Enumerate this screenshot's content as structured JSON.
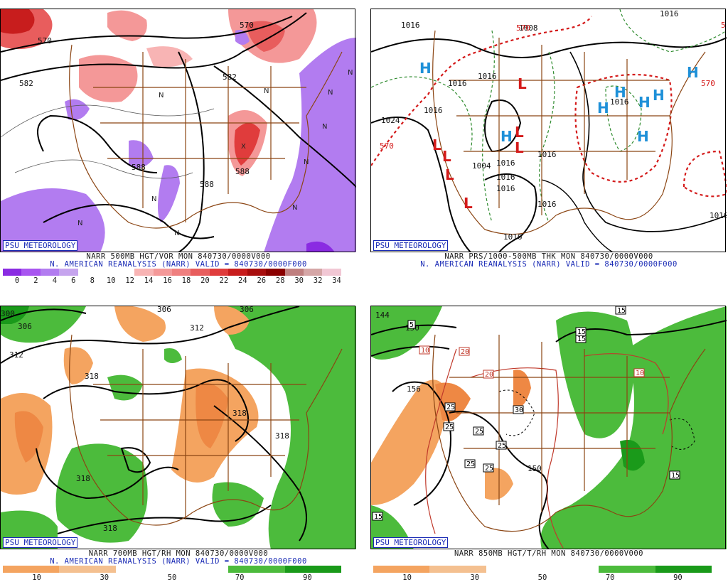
{
  "panels": {
    "p500": {
      "badge": "PSU METEOROLOGY",
      "caption_line1": "NARR 500MB HGT/VOR MON 840730/0000V000",
      "caption_line2": "N. AMERICAN REANALYSIS (NARR) VALID = 840730/0000F000",
      "scale_ticks": [
        "0",
        "2",
        "4",
        "6",
        "8",
        "10",
        "12",
        "14",
        "16",
        "18",
        "20",
        "22",
        "24",
        "26",
        "28",
        "30",
        "32",
        "34"
      ],
      "scale_colors": [
        "#8a2be2",
        "#a855f0",
        "#b27cf0",
        "#c6a4ee",
        "#ffffff",
        "#ffffff",
        "#ffffff",
        "#f8b4b4",
        "#f49898",
        "#ef7f7f",
        "#e85d5d",
        "#e03c3c",
        "#c81d1d",
        "#a80e0e",
        "#8a0000",
        "#bf7f7f",
        "#d5a6a6",
        "#f1c7d4"
      ],
      "contour_labels": [
        "570",
        "582",
        "582",
        "570",
        "588",
        "588",
        "588"
      ],
      "vort_letters": [
        "N",
        "X",
        "N",
        "N",
        "N",
        "N",
        "N",
        "N",
        "N",
        "N",
        "N"
      ]
    },
    "pthk": {
      "badge": "PSU METEOROLOGY",
      "caption_line1": "NARR PRS/1000-500MB THK MON 840730/0000V000",
      "caption_line2": "N. AMERICAN REANALYSIS (NARR) VALID = 840730/0000F000",
      "isobar_labels": [
        "1016",
        "1008",
        "1016",
        "1016",
        "1016",
        "1016",
        "1016",
        "1016",
        "1016",
        "1024",
        "1016",
        "1016",
        "1016",
        "1010",
        "1016",
        "1004"
      ],
      "thickness_labels": [
        "570",
        "570",
        "570",
        "5"
      ],
      "highs": [
        "H",
        "H",
        "H",
        "H",
        "H",
        "H",
        "H",
        "H"
      ],
      "lows": [
        "L",
        "L",
        "L",
        "L",
        "L",
        "L",
        "L"
      ]
    },
    "p700": {
      "badge": "PSU METEOROLOGY",
      "caption_line1": "NARR 700MB HGT/RH MON 840730/0000V000",
      "caption_line2": "N. AMERICAN REANALYSIS (NARR) VALID = 840730/0000F000",
      "scale_ticks": [
        "10",
        "30",
        "50",
        "70",
        "90"
      ],
      "scale_colors": [
        "#f4a460",
        "#f4c090",
        "#ffffff",
        "#ffffff",
        "#4cbb3c",
        "#1a9a1a"
      ],
      "contour_labels": [
        "306",
        "306",
        "300",
        "306",
        "312",
        "312",
        "318",
        "318",
        "318",
        "318",
        "318"
      ]
    },
    "p850": {
      "badge": "PSU METEOROLOGY",
      "caption_line1": "NARR 850MB HGT/T/RH MON 840730/0000V000",
      "scale_ticks": [
        "10",
        "30",
        "50",
        "70",
        "90"
      ],
      "scale_colors": [
        "#f4a460",
        "#f4c090",
        "#ffffff",
        "#ffffff",
        "#4cbb3c",
        "#1a9a1a"
      ],
      "contour_labels": [
        "144",
        "150",
        "156",
        "150",
        "15",
        "15",
        "5",
        "10",
        "20",
        "20",
        "10",
        "25",
        "25",
        "25",
        "25",
        "25",
        "25",
        "30",
        "15",
        "15",
        "15"
      ]
    }
  }
}
